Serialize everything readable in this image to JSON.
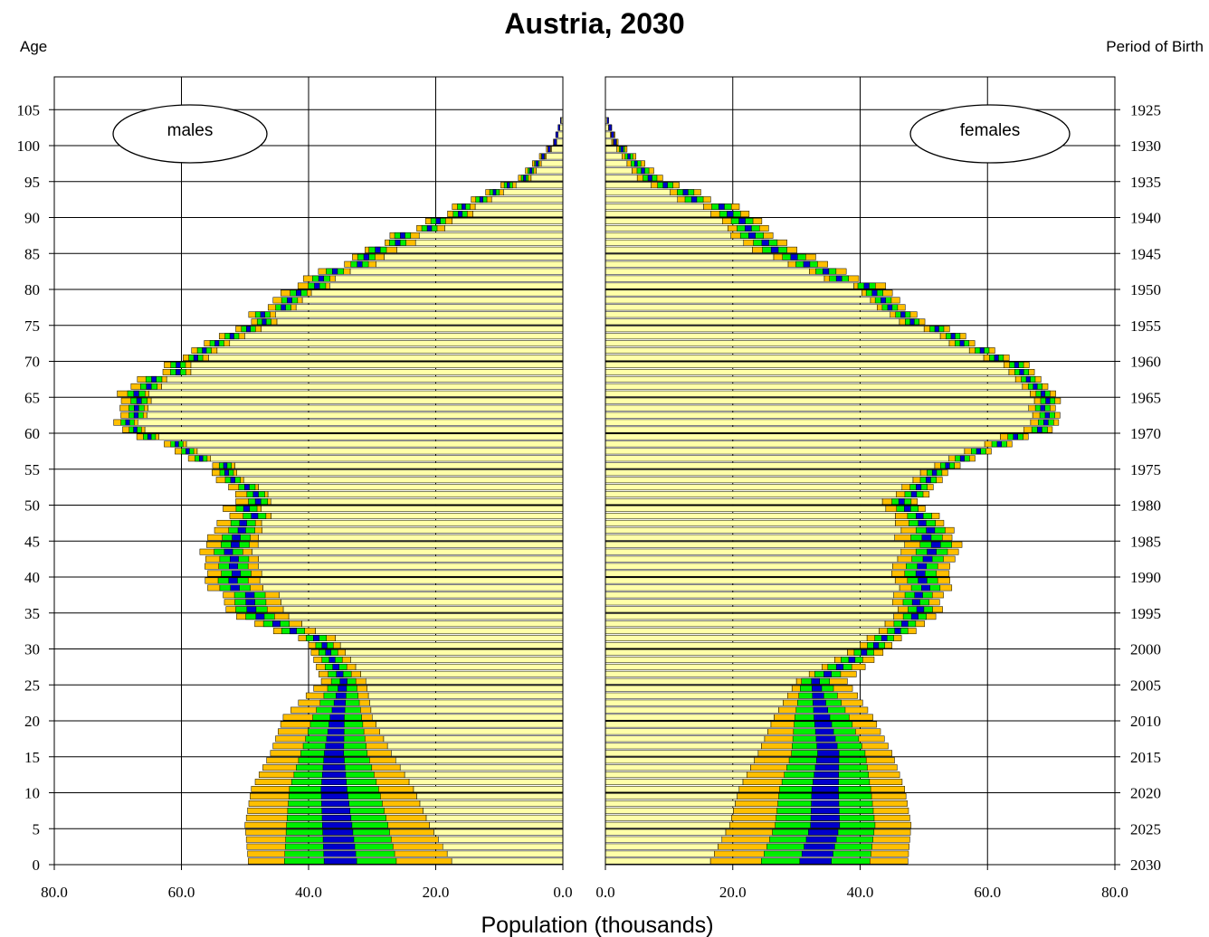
{
  "chart_data": {
    "type": "bar",
    "subtype": "population-pyramid-fan",
    "title": "Austria, 2030",
    "ylabel_left": "Age",
    "ylabel_right": "Period of Birth",
    "xlabel": "Population (thousands)",
    "left_panel_label": "males",
    "right_panel_label": "females",
    "xlim": [
      0,
      80
    ],
    "x_ticks": [
      "80.0",
      "60.0",
      "40.0",
      "20.0",
      "0.0"
    ],
    "x_ticks_right": [
      "0.0",
      "20.0",
      "40.0",
      "60.0",
      "80.0"
    ],
    "age_ticks": [
      "0",
      "5",
      "10",
      "15",
      "20",
      "25",
      "30",
      "35",
      "40",
      "45",
      "50",
      "55",
      "60",
      "65",
      "70",
      "75",
      "80",
      "85",
      "90",
      "95",
      "100",
      "105"
    ],
    "birth_ticks": [
      "2030",
      "2025",
      "2020",
      "2015",
      "2010",
      "2005",
      "2000",
      "1995",
      "1990",
      "1985",
      "1980",
      "1975",
      "1970",
      "1965",
      "1960",
      "1955",
      "1950",
      "1945",
      "1940",
      "1935",
      "1930",
      "1925"
    ],
    "ylim": [
      0,
      105
    ],
    "grid": true,
    "colors": {
      "core": "#FFFFA8",
      "band_outer": "#FFBF00",
      "band_mid": "#00EE00",
      "band_inner": "#0000CC",
      "outline": "#000000"
    },
    "series": [
      {
        "name": "males",
        "ages": [
          0,
          5,
          10,
          15,
          20,
          25,
          30,
          35,
          40,
          45,
          50,
          55,
          60,
          65,
          70,
          75,
          80,
          85,
          90,
          95,
          100,
          104
        ],
        "median": [
          35,
          35.5,
          36,
          36,
          35.5,
          34.5,
          37.5,
          49,
          52,
          51.5,
          48,
          53,
          67.5,
          67,
          58,
          48,
          39,
          29,
          17,
          6,
          1.2,
          0
        ],
        "core_edge": [
          17.5,
          21,
          23.5,
          27,
          30,
          31,
          35,
          44,
          48,
          48,
          46,
          51.5,
          66,
          65,
          56,
          46,
          37,
          26,
          15,
          5,
          1,
          0
        ],
        "outer_edge": [
          49.5,
          50,
          49,
          46,
          44,
          38,
          40,
          53,
          56.5,
          56,
          51.5,
          55,
          69.5,
          70,
          60,
          50,
          42,
          31,
          19,
          7,
          1.5,
          0
        ]
      },
      {
        "name": "females",
        "ages": [
          0,
          5,
          10,
          15,
          20,
          25,
          30,
          35,
          40,
          45,
          50,
          55,
          60,
          65,
          70,
          75,
          80,
          85,
          90,
          95,
          100,
          104
        ],
        "median": [
          33,
          34.5,
          34.5,
          35,
          34,
          33,
          42.5,
          49.5,
          50.5,
          51,
          47,
          53.5,
          68.5,
          69.5,
          62,
          49,
          40,
          26.5,
          20,
          7,
          1.5,
          0
        ],
        "core_edge": [
          16.5,
          19.5,
          21,
          24,
          26.5,
          30,
          40,
          46,
          46,
          46,
          44,
          51.5,
          66,
          67.5,
          60,
          47,
          38,
          23,
          17,
          5,
          1,
          0
        ],
        "outer_edge": [
          47.5,
          48,
          47,
          45,
          42,
          38,
          45,
          53,
          55,
          55,
          49.5,
          55.5,
          70.5,
          71.5,
          64,
          51,
          43,
          30,
          23,
          9,
          2,
          0
        ]
      }
    ]
  }
}
